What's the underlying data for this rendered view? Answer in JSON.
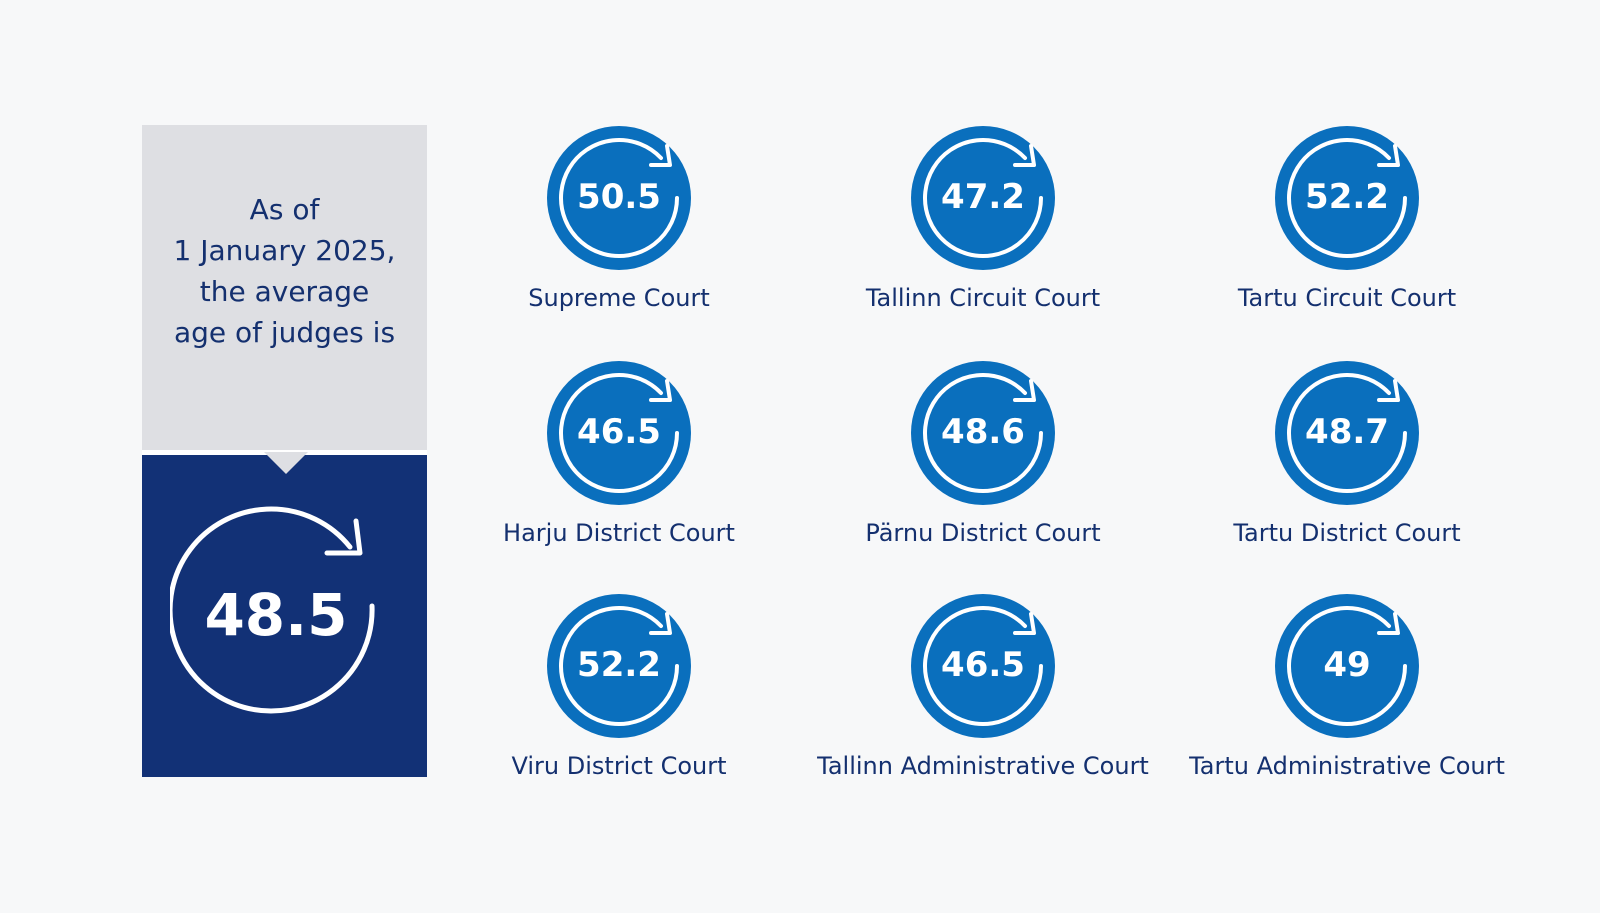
{
  "intro": {
    "lines": [
      "As of",
      "1 January 2025,",
      "the average",
      "age of judges is"
    ],
    "average_age": "48.5"
  },
  "colors": {
    "navy": "#123176",
    "blue": "#0a6fbd",
    "grey_panel": "#dedfe3",
    "text": "#14306f"
  },
  "icon": "circular-arrow-icon",
  "courts": [
    {
      "name": "Supreme Court",
      "age": "50.5"
    },
    {
      "name": "Tallinn Circuit Court",
      "age": "47.2"
    },
    {
      "name": "Tartu Circuit Court",
      "age": "52.2"
    },
    {
      "name": "Harju District Court",
      "age": "46.5"
    },
    {
      "name": "Pärnu District Court",
      "age": "48.6"
    },
    {
      "name": "Tartu District Court",
      "age": "48.7"
    },
    {
      "name": "Viru District Court",
      "age": "52.2"
    },
    {
      "name": "Tallinn Administrative Court",
      "age": "46.5"
    },
    {
      "name": "Tartu Administrative Court",
      "age": "49"
    }
  ]
}
